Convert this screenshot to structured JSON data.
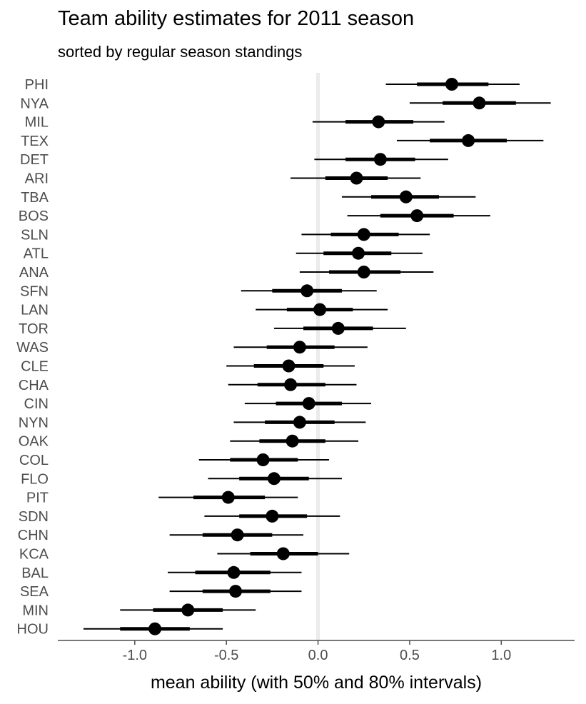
{
  "chart_data": {
    "type": "scatter",
    "title": "Team ability estimates for 2011 season",
    "subtitle": "sorted by regular season standings",
    "xlabel": "mean ability (with 50% and 80% intervals)",
    "ylabel": "",
    "xlim": [
      -1.42,
      1.4
    ],
    "x_ticks": [
      -1.0,
      -0.5,
      0.0,
      0.5,
      1.0
    ],
    "x_tick_labels": [
      "-1.0",
      "-0.5",
      "0.0",
      "0.5",
      "1.0"
    ],
    "reference_line_x": 0.0,
    "grid": false,
    "colors": {
      "points": "#000000",
      "reference_line": "#ebebeb",
      "axis": "#4d4d4d"
    },
    "teams": [
      {
        "team": "PHI",
        "mean": 0.73,
        "lo50": 0.54,
        "hi50": 0.93,
        "lo80": 0.37,
        "hi80": 1.1
      },
      {
        "team": "NYA",
        "mean": 0.88,
        "lo50": 0.68,
        "hi50": 1.08,
        "lo80": 0.5,
        "hi80": 1.27
      },
      {
        "team": "MIL",
        "mean": 0.33,
        "lo50": 0.15,
        "hi50": 0.52,
        "lo80": -0.03,
        "hi80": 0.69
      },
      {
        "team": "TEX",
        "mean": 0.82,
        "lo50": 0.61,
        "hi50": 1.03,
        "lo80": 0.43,
        "hi80": 1.23
      },
      {
        "team": "DET",
        "mean": 0.34,
        "lo50": 0.15,
        "hi50": 0.53,
        "lo80": -0.02,
        "hi80": 0.71
      },
      {
        "team": "ARI",
        "mean": 0.21,
        "lo50": 0.04,
        "hi50": 0.38,
        "lo80": -0.15,
        "hi80": 0.56
      },
      {
        "team": "TBA",
        "mean": 0.48,
        "lo50": 0.29,
        "hi50": 0.66,
        "lo80": 0.13,
        "hi80": 0.86
      },
      {
        "team": "BOS",
        "mean": 0.54,
        "lo50": 0.34,
        "hi50": 0.74,
        "lo80": 0.16,
        "hi80": 0.94
      },
      {
        "team": "SLN",
        "mean": 0.25,
        "lo50": 0.07,
        "hi50": 0.44,
        "lo80": -0.09,
        "hi80": 0.61
      },
      {
        "team": "ATL",
        "mean": 0.22,
        "lo50": 0.03,
        "hi50": 0.4,
        "lo80": -0.12,
        "hi80": 0.57
      },
      {
        "team": "ANA",
        "mean": 0.25,
        "lo50": 0.06,
        "hi50": 0.45,
        "lo80": -0.1,
        "hi80": 0.63
      },
      {
        "team": "SFN",
        "mean": -0.06,
        "lo50": -0.25,
        "hi50": 0.13,
        "lo80": -0.42,
        "hi80": 0.32
      },
      {
        "team": "LAN",
        "mean": 0.01,
        "lo50": -0.17,
        "hi50": 0.19,
        "lo80": -0.34,
        "hi80": 0.38
      },
      {
        "team": "TOR",
        "mean": 0.11,
        "lo50": -0.08,
        "hi50": 0.3,
        "lo80": -0.24,
        "hi80": 0.48
      },
      {
        "team": "WAS",
        "mean": -0.1,
        "lo50": -0.28,
        "hi50": 0.09,
        "lo80": -0.46,
        "hi80": 0.27
      },
      {
        "team": "CLE",
        "mean": -0.16,
        "lo50": -0.35,
        "hi50": 0.03,
        "lo80": -0.5,
        "hi80": 0.2
      },
      {
        "team": "CHA",
        "mean": -0.15,
        "lo50": -0.33,
        "hi50": 0.04,
        "lo80": -0.49,
        "hi80": 0.21
      },
      {
        "team": "CIN",
        "mean": -0.05,
        "lo50": -0.23,
        "hi50": 0.13,
        "lo80": -0.4,
        "hi80": 0.29
      },
      {
        "team": "NYN",
        "mean": -0.1,
        "lo50": -0.29,
        "hi50": 0.09,
        "lo80": -0.46,
        "hi80": 0.26
      },
      {
        "team": "OAK",
        "mean": -0.14,
        "lo50": -0.32,
        "hi50": 0.04,
        "lo80": -0.48,
        "hi80": 0.22
      },
      {
        "team": "COL",
        "mean": -0.3,
        "lo50": -0.48,
        "hi50": -0.11,
        "lo80": -0.65,
        "hi80": 0.06
      },
      {
        "team": "FLO",
        "mean": -0.24,
        "lo50": -0.43,
        "hi50": -0.05,
        "lo80": -0.6,
        "hi80": 0.13
      },
      {
        "team": "PIT",
        "mean": -0.49,
        "lo50": -0.68,
        "hi50": -0.29,
        "lo80": -0.87,
        "hi80": -0.11
      },
      {
        "team": "SDN",
        "mean": -0.25,
        "lo50": -0.43,
        "hi50": -0.06,
        "lo80": -0.62,
        "hi80": 0.12
      },
      {
        "team": "CHN",
        "mean": -0.44,
        "lo50": -0.63,
        "hi50": -0.25,
        "lo80": -0.81,
        "hi80": -0.08
      },
      {
        "team": "KCA",
        "mean": -0.19,
        "lo50": -0.37,
        "hi50": 0.0,
        "lo80": -0.55,
        "hi80": 0.17
      },
      {
        "team": "BAL",
        "mean": -0.46,
        "lo50": -0.67,
        "hi50": -0.26,
        "lo80": -0.82,
        "hi80": -0.09
      },
      {
        "team": "SEA",
        "mean": -0.45,
        "lo50": -0.63,
        "hi50": -0.26,
        "lo80": -0.81,
        "hi80": -0.09
      },
      {
        "team": "MIN",
        "mean": -0.71,
        "lo50": -0.9,
        "hi50": -0.52,
        "lo80": -1.08,
        "hi80": -0.34
      },
      {
        "team": "HOU",
        "mean": -0.89,
        "lo50": -1.08,
        "hi50": -0.7,
        "lo80": -1.28,
        "hi80": -0.52
      }
    ]
  }
}
